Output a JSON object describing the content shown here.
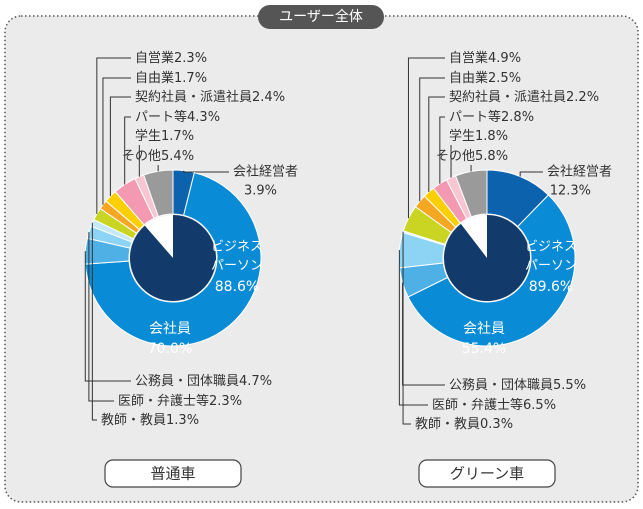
{
  "title": "ユーザー全体",
  "chart_data": [
    {
      "type": "donut",
      "caption": "普通車",
      "categories": [
        "会社経営者",
        "会社員",
        "公務員・団体職員",
        "医師・弁護士等",
        "教師・教員",
        "自営業",
        "自由業",
        "契約社員・派遣社員",
        "パート等",
        "学生",
        "その他"
      ],
      "values": [
        3.9,
        70.0,
        4.7,
        2.3,
        1.3,
        2.3,
        1.7,
        2.4,
        4.3,
        1.7,
        5.4
      ],
      "value_labels": [
        "3.9%",
        "70.0%",
        "4.7%",
        "2.3%",
        "1.3%",
        "2.3%",
        "1.7%",
        "2.4%",
        "4.3%",
        "1.7%",
        "5.4%"
      ],
      "colors": [
        "#0d62ae",
        "#0a8bd6",
        "#4fb0e6",
        "#8dd3f3",
        "#c6e9f9",
        "#cad422",
        "#f5a623",
        "#fcd000",
        "#f39ab2",
        "#f8c6d2",
        "#9a9a9a"
      ],
      "inner": {
        "label": [
          "ビジネス",
          "パーソン"
        ],
        "value": 88.6,
        "value_label": "88.6%",
        "color": "#123b6b"
      }
    },
    {
      "type": "donut",
      "caption": "グリーン車",
      "categories": [
        "会社経営者",
        "会社員",
        "公務員・団体職員",
        "医師・弁護士等",
        "教師・教員",
        "自営業",
        "自由業",
        "契約社員・派遣社員",
        "パート等",
        "学生",
        "その他"
      ],
      "values": [
        12.3,
        55.4,
        5.5,
        6.5,
        0.3,
        4.9,
        2.5,
        2.2,
        2.8,
        1.8,
        5.8
      ],
      "value_labels": [
        "12.3%",
        "55.4%",
        "5.5%",
        "6.5%",
        "0.3%",
        "4.9%",
        "2.5%",
        "2.2%",
        "2.8%",
        "1.8%",
        "5.8%"
      ],
      "colors": [
        "#0d62ae",
        "#0a8bd6",
        "#4fb0e6",
        "#8dd3f3",
        "#c6e9f9",
        "#cad422",
        "#f5a623",
        "#fcd000",
        "#f39ab2",
        "#f8c6d2",
        "#9a9a9a"
      ],
      "inner": {
        "label": [
          "ビジネス",
          "パーソン"
        ],
        "value": 89.6,
        "value_label": "89.6%",
        "color": "#123b6b"
      }
    }
  ]
}
